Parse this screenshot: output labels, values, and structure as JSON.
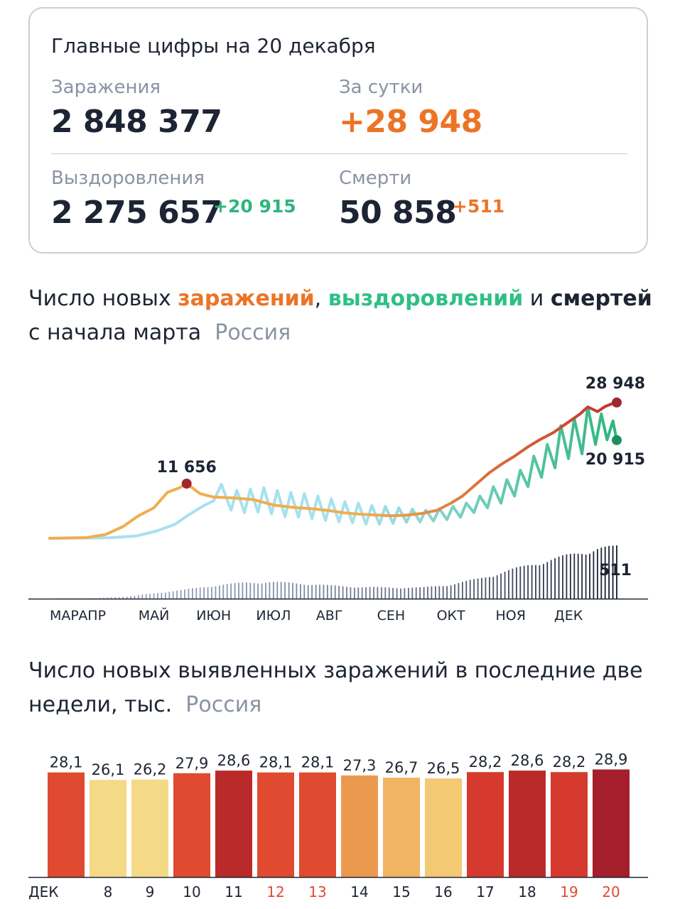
{
  "summary": {
    "title": "Главные цифры на 20 декабря",
    "infections_label": "Заражения",
    "infections_value": "2 848 377",
    "daily_label": "За сутки",
    "daily_value": "+28 948",
    "recoveries_label": "Выздоровления",
    "recoveries_value": "2 275 657",
    "recoveries_delta": "+20 915",
    "deaths_label": "Смерти",
    "deaths_value": "50 858",
    "deaths_delta": "+511"
  },
  "line_section": {
    "title_prefix": "Число новых ",
    "title_infections": "заражений",
    "title_comma": ", ",
    "title_recoveries": "выздоровлений",
    "title_and": " и ",
    "title_deaths": "смертей",
    "title_line2": "с начала марта",
    "region": "Россия"
  },
  "bar_section": {
    "title_line1": "Число новых выявленных заражений в последние две",
    "title_line2": "недели, тыс.",
    "region": "Россия"
  },
  "chart_data": [
    {
      "type": "line",
      "x_start": "2020-03-01",
      "x_end": "2020-12-20",
      "x_ticks": [
        {
          "label": "МАР",
          "date": "2020-03-01"
        },
        {
          "label": "АПР",
          "date": "2020-03-23"
        },
        {
          "label": "МАЙ",
          "date": "2020-04-24"
        },
        {
          "label": "ИЮН",
          "date": "2020-05-25"
        },
        {
          "label": "ИЮЛ",
          "date": "2020-06-25"
        },
        {
          "label": "АВГ",
          "date": "2020-07-24"
        },
        {
          "label": "СЕН",
          "date": "2020-08-25"
        },
        {
          "label": "ОКТ",
          "date": "2020-09-25"
        },
        {
          "label": "НОЯ",
          "date": "2020-10-26"
        },
        {
          "label": "ДЕК",
          "date": "2020-11-25"
        }
      ],
      "ylim": [
        0,
        33000
      ],
      "series": [
        {
          "key": "infections",
          "color_start": "#f0ae4e",
          "color_end": "#c0322c",
          "points": [
            [
              "2020-03-01",
              0
            ],
            [
              "2020-03-20",
              150
            ],
            [
              "2020-03-30",
              800
            ],
            [
              "2020-04-08",
              2500
            ],
            [
              "2020-04-16",
              4800
            ],
            [
              "2020-04-24",
              6500
            ],
            [
              "2020-05-01",
              9800
            ],
            [
              "2020-05-07",
              10700
            ],
            [
              "2020-05-11",
              11656
            ],
            [
              "2020-05-18",
              9500
            ],
            [
              "2020-05-25",
              8800
            ],
            [
              "2020-06-05",
              8600
            ],
            [
              "2020-06-15",
              8200
            ],
            [
              "2020-06-25",
              7100
            ],
            [
              "2020-07-05",
              6600
            ],
            [
              "2020-07-15",
              6300
            ],
            [
              "2020-07-24",
              5900
            ],
            [
              "2020-08-01",
              5400
            ],
            [
              "2020-08-10",
              5100
            ],
            [
              "2020-08-20",
              4900
            ],
            [
              "2020-08-25",
              4800
            ],
            [
              "2020-09-01",
              4900
            ],
            [
              "2020-09-10",
              5300
            ],
            [
              "2020-09-18",
              6000
            ],
            [
              "2020-09-25",
              7500
            ],
            [
              "2020-10-01",
              9000
            ],
            [
              "2020-10-08",
              11500
            ],
            [
              "2020-10-15",
              14000
            ],
            [
              "2020-10-22",
              16000
            ],
            [
              "2020-10-28",
              17500
            ],
            [
              "2020-11-04",
              19500
            ],
            [
              "2020-11-10",
              21000
            ],
            [
              "2020-11-17",
              22500
            ],
            [
              "2020-11-24",
              24500
            ],
            [
              "2020-12-01",
              26500
            ],
            [
              "2020-12-05",
              28000
            ],
            [
              "2020-12-10",
              27000
            ],
            [
              "2020-12-14",
              28100
            ],
            [
              "2020-12-17",
              28600
            ],
            [
              "2020-12-20",
              28948
            ]
          ]
        },
        {
          "key": "recoveries",
          "color_start": "#a6e1ee",
          "color_end": "#2db67e",
          "points": [
            [
              "2020-03-01",
              0
            ],
            [
              "2020-04-01",
              100
            ],
            [
              "2020-04-15",
              500
            ],
            [
              "2020-04-25",
              1500
            ],
            [
              "2020-05-05",
              3000
            ],
            [
              "2020-05-12",
              5000
            ],
            [
              "2020-05-20",
              7000
            ],
            [
              "2020-05-25",
              8000
            ],
            [
              "2020-05-29",
              11500
            ],
            [
              "2020-06-03",
              6000
            ],
            [
              "2020-06-06",
              10200
            ],
            [
              "2020-06-10",
              5500
            ],
            [
              "2020-06-13",
              10500
            ],
            [
              "2020-06-17",
              5600
            ],
            [
              "2020-06-20",
              10800
            ],
            [
              "2020-06-24",
              5200
            ],
            [
              "2020-06-27",
              10200
            ],
            [
              "2020-07-01",
              4600
            ],
            [
              "2020-07-04",
              9800
            ],
            [
              "2020-07-08",
              4500
            ],
            [
              "2020-07-11",
              9500
            ],
            [
              "2020-07-15",
              4200
            ],
            [
              "2020-07-18",
              9000
            ],
            [
              "2020-07-22",
              3800
            ],
            [
              "2020-07-25",
              8400
            ],
            [
              "2020-07-29",
              3500
            ],
            [
              "2020-08-01",
              7800
            ],
            [
              "2020-08-05",
              3300
            ],
            [
              "2020-08-08",
              7500
            ],
            [
              "2020-08-12",
              3000
            ],
            [
              "2020-08-15",
              7000
            ],
            [
              "2020-08-19",
              3000
            ],
            [
              "2020-08-22",
              6800
            ],
            [
              "2020-08-26",
              3200
            ],
            [
              "2020-08-29",
              6500
            ],
            [
              "2020-09-02",
              3400
            ],
            [
              "2020-09-05",
              6200
            ],
            [
              "2020-09-09",
              3500
            ],
            [
              "2020-09-12",
              6000
            ],
            [
              "2020-09-16",
              3700
            ],
            [
              "2020-09-19",
              6300
            ],
            [
              "2020-09-23",
              4000
            ],
            [
              "2020-09-26",
              6800
            ],
            [
              "2020-09-30",
              4500
            ],
            [
              "2020-10-03",
              7500
            ],
            [
              "2020-10-07",
              5500
            ],
            [
              "2020-10-10",
              9000
            ],
            [
              "2020-10-14",
              6500
            ],
            [
              "2020-10-17",
              11000
            ],
            [
              "2020-10-21",
              7500
            ],
            [
              "2020-10-24",
              12500
            ],
            [
              "2020-10-28",
              9000
            ],
            [
              "2020-10-31",
              14500
            ],
            [
              "2020-11-04",
              11000
            ],
            [
              "2020-11-07",
              17500
            ],
            [
              "2020-11-11",
              13000
            ],
            [
              "2020-11-14",
              20000
            ],
            [
              "2020-11-18",
              15000
            ],
            [
              "2020-11-21",
              24000
            ],
            [
              "2020-11-25",
              17000
            ],
            [
              "2020-11-28",
              25500
            ],
            [
              "2020-12-02",
              18000
            ],
            [
              "2020-12-05",
              28000
            ],
            [
              "2020-12-09",
              20000
            ],
            [
              "2020-12-12",
              26500
            ],
            [
              "2020-12-15",
              21000
            ],
            [
              "2020-12-18",
              25000
            ],
            [
              "2020-12-20",
              20915
            ]
          ]
        }
      ],
      "deaths": {
        "color_start": "#9ba3bf",
        "color_end": "#161b2e",
        "ymax": 600,
        "anchors": [
          [
            "2020-03-01",
            0
          ],
          [
            "2020-03-25",
            5
          ],
          [
            "2020-04-10",
            20
          ],
          [
            "2020-04-25",
            55
          ],
          [
            "2020-05-10",
            90
          ],
          [
            "2020-05-25",
            130
          ],
          [
            "2020-06-10",
            160
          ],
          [
            "2020-06-25",
            165
          ],
          [
            "2020-07-10",
            150
          ],
          [
            "2020-07-25",
            130
          ],
          [
            "2020-08-10",
            115
          ],
          [
            "2020-08-25",
            110
          ],
          [
            "2020-09-10",
            110
          ],
          [
            "2020-09-25",
            140
          ],
          [
            "2020-10-10",
            200
          ],
          [
            "2020-10-25",
            280
          ],
          [
            "2020-11-10",
            360
          ],
          [
            "2020-11-25",
            430
          ],
          [
            "2020-12-10",
            500
          ],
          [
            "2020-12-20",
            511
          ]
        ]
      },
      "annotations": [
        {
          "series": "infections",
          "date": "2020-05-11",
          "value": 11656,
          "label": "11 656",
          "color": "#a1262e"
        },
        {
          "series": "infections",
          "date": "2020-12-20",
          "value": 28948,
          "label": "28 948",
          "color": "#a1262e"
        },
        {
          "series": "recoveries",
          "date": "2020-12-20",
          "value": 20915,
          "label": "20 915",
          "color": "#1c8f5e"
        },
        {
          "series": "deaths",
          "date": "2020-12-20",
          "value": 511,
          "label": "511"
        }
      ]
    },
    {
      "type": "bar",
      "first_tick_label": "ДЕК",
      "categories": [
        "7",
        "8",
        "9",
        "10",
        "11",
        "12",
        "13",
        "14",
        "15",
        "16",
        "17",
        "18",
        "19",
        "20"
      ],
      "show_label": [
        false,
        true,
        true,
        true,
        true,
        true,
        true,
        true,
        true,
        true,
        true,
        true,
        true,
        true
      ],
      "weekend": [
        false,
        false,
        false,
        false,
        false,
        true,
        true,
        false,
        false,
        false,
        false,
        false,
        true,
        true
      ],
      "labels": [
        "28,1",
        "26,1",
        "26,2",
        "27,9",
        "28,6",
        "28,1",
        "28,1",
        "27,3",
        "26,7",
        "26,5",
        "28,2",
        "28,6",
        "28,2",
        "28,9"
      ],
      "values": [
        28.1,
        26.1,
        26.2,
        27.9,
        28.6,
        28.1,
        28.1,
        27.3,
        26.7,
        26.5,
        28.2,
        28.6,
        28.2,
        28.9
      ],
      "colors": [
        "#e04a30",
        "#f4da86",
        "#f4da86",
        "#e04a30",
        "#bb2a2a",
        "#e04a30",
        "#e04a30",
        "#ec9950",
        "#f1b463",
        "#f3c974",
        "#d63a2e",
        "#bb2a2a",
        "#d63a2e",
        "#a41e2c"
      ],
      "weekend_color": "#e04a30",
      "ylim": [
        0,
        29
      ]
    }
  ]
}
